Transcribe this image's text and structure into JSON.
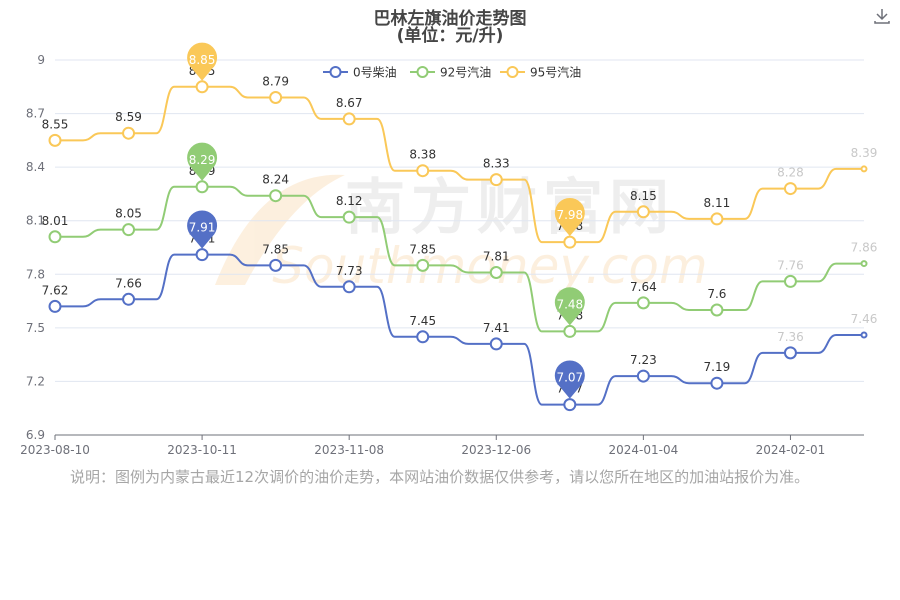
{
  "title": "巴林左旗油价走势图",
  "subtitle": "(单位：元/升)",
  "note": "说明：图例为内蒙古最近12次调价的油价走势，本网站油价数据仅供参考，请以您所在地区的加油站报价为准。",
  "watermark": {
    "cn": "南方财富网",
    "en": "Southmoney.com"
  },
  "colors": {
    "diesel0": "#5470c6",
    "gas92": "#91cc75",
    "gas95": "#fac858",
    "axis": "#6e7079",
    "grid": "#e0e6f1",
    "label": "#333333",
    "faded_label": "#c8c8c8"
  },
  "chart_data": {
    "type": "line",
    "title": "巴林左旗油价走势图",
    "subtitle": "(单位：元/升)",
    "xlabel": "",
    "ylabel": "",
    "ylim": [
      6.9,
      9.0
    ],
    "yticks": [
      "6.9",
      "7.2",
      "7.5",
      "7.8",
      "8.1",
      "8.4",
      "8.7",
      "9"
    ],
    "x_tick_labels": [
      "2023-08-10",
      "2023-10-11",
      "2023-11-08",
      "2023-12-06",
      "2024-01-04",
      "2024-02-01"
    ],
    "legend_position": "top-center",
    "grid": true,
    "series": [
      {
        "name": "0号柴油",
        "color": "#5470c6",
        "values": [
          7.62,
          7.66,
          7.91,
          7.85,
          7.73,
          7.45,
          7.41,
          7.07,
          7.23,
          7.19,
          7.36,
          7.46
        ],
        "max_pin": "7.91",
        "min_pin": "7.07"
      },
      {
        "name": "92号汽油",
        "color": "#91cc75",
        "values": [
          8.01,
          8.05,
          8.29,
          8.24,
          8.12,
          7.85,
          7.81,
          7.48,
          7.64,
          7.6,
          7.76,
          7.86
        ],
        "max_pin": "8.29",
        "min_pin": "7.48"
      },
      {
        "name": "95号汽油",
        "color": "#fac858",
        "values": [
          8.55,
          8.59,
          8.85,
          8.79,
          8.67,
          8.38,
          8.33,
          7.98,
          8.15,
          8.11,
          8.28,
          8.39
        ],
        "max_pin": "8.85",
        "min_pin": "7.98"
      }
    ]
  }
}
